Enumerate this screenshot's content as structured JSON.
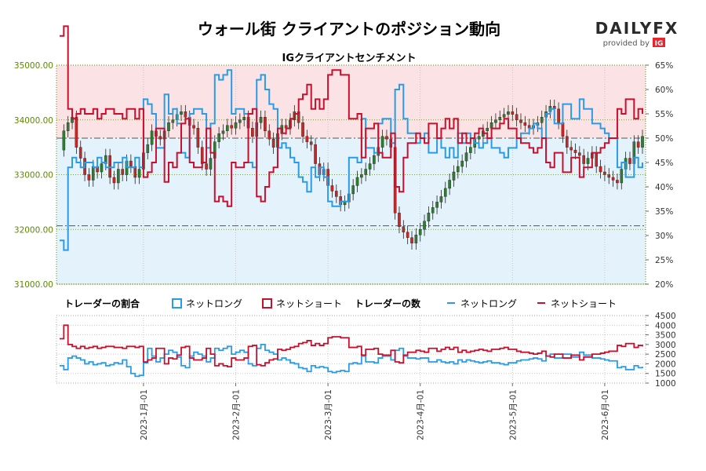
{
  "title": "ウォール街 クライアントのポジション動向",
  "subtitle": "IGクライアントセンチメント",
  "logo": {
    "main": "DAILYFX",
    "tagline": "provided by",
    "tag_mark": "IG"
  },
  "colors": {
    "long": "#2a9be6",
    "short": "#c8102e",
    "bg_top": "#fbe3e5",
    "bg_bottom": "#e4f2fb",
    "up_candle": "#2e7d32",
    "down_candle": "#c62828",
    "axis_left": "#5a8a00",
    "grid": "#b5b5b5"
  },
  "legend": {
    "ratio_title": "トレーダーの割合",
    "count_title": "トレーダーの数",
    "net_long": "ネットロング",
    "net_short": "ネットショート"
  },
  "chart_data": [
    {
      "type": "candlestick+line",
      "title": "IGクライアントセンチメント",
      "y_left_ticks": [
        "35000.00",
        "34000.00",
        "33000.00",
        "32000.00",
        "31000.00"
      ],
      "ylim_left": [
        31000,
        35000
      ],
      "y_right_ticks": [
        "65%",
        "60%",
        "55%",
        "50%",
        "45%",
        "40%",
        "35%",
        "30%",
        "25%",
        "20%"
      ],
      "ylim_right": [
        20,
        65
      ],
      "reference_lines": [
        50,
        32
      ],
      "x_tick_labels": [
        "2023-1月-01",
        "2023-2月-01",
        "2023-3月-01",
        "2023-4月-01",
        "2023-5月-01",
        "2023-6月-01"
      ],
      "price_close": [
        33450,
        33800,
        33950,
        34050,
        33500,
        33300,
        33000,
        32900,
        33150,
        33050,
        33200,
        33350,
        32950,
        32850,
        33100,
        33000,
        33250,
        33150,
        32950,
        33100,
        33400,
        33550,
        33800,
        33700,
        33650,
        33800,
        33950,
        34000,
        34100,
        34150,
        34050,
        33900,
        33850,
        33500,
        33200,
        33100,
        33300,
        33600,
        33750,
        33800,
        33900,
        33850,
        33950,
        34000,
        34050,
        33850,
        33700,
        33950,
        34050,
        33800,
        33650,
        33500,
        33750,
        33900,
        33850,
        34000,
        34150,
        33950,
        33700,
        33600,
        33550,
        33200,
        33000,
        33100,
        32800,
        32700,
        32600,
        32450,
        32500,
        32650,
        32800,
        32950,
        33000,
        33100,
        33200,
        33350,
        33500,
        33700,
        33650,
        33500,
        32300,
        32050,
        31950,
        31850,
        31750,
        31900,
        32000,
        32150,
        32300,
        32400,
        32500,
        32600,
        32750,
        32900,
        33050,
        33150,
        33250,
        33400,
        33500,
        33650,
        33700,
        33800,
        33850,
        33950,
        34000,
        34050,
        34100,
        34150,
        34100,
        34000,
        33950,
        33900,
        33850,
        33900,
        33950,
        34050,
        34150,
        34250,
        34200,
        33950,
        33700,
        33500,
        33450,
        33400,
        33350,
        33200,
        33300,
        33400,
        33150,
        33050,
        33000,
        32950,
        32900,
        32850,
        33100,
        33300,
        33200,
        33600,
        33500,
        33700
      ],
      "long_pct": [
        29,
        27,
        44,
        46,
        45,
        44,
        45,
        45,
        44,
        46,
        45,
        44,
        44,
        45,
        45,
        46,
        44,
        44,
        46,
        44,
        58,
        57,
        55,
        48,
        48,
        59,
        55,
        56,
        53,
        47,
        46,
        55,
        56,
        56,
        55,
        48,
        53,
        63,
        62,
        63,
        64,
        55,
        56,
        56,
        55,
        45,
        44,
        62,
        63,
        60,
        57,
        56,
        48,
        49,
        48,
        46,
        45,
        42,
        41,
        39,
        44,
        42,
        44,
        42,
        37,
        36,
        36,
        37,
        37,
        46,
        46,
        45,
        54,
        48,
        48,
        47,
        53,
        54,
        54,
        49,
        60,
        61,
        54,
        51,
        51,
        49,
        50,
        51,
        47,
        47,
        50,
        48,
        46,
        48,
        46,
        51,
        49,
        51,
        50,
        49,
        48,
        49,
        50,
        48,
        48,
        47,
        46,
        48,
        48,
        50,
        51,
        51,
        52,
        53,
        52,
        50,
        55,
        56,
        53,
        53,
        57,
        57,
        54,
        54,
        58,
        56,
        56,
        53,
        53,
        52,
        51,
        50,
        50,
        44,
        45,
        42,
        42,
        46,
        44,
        45
      ],
      "short_pct": [
        71,
        73,
        56,
        54,
        55,
        56,
        55,
        55,
        56,
        54,
        55,
        56,
        56,
        55,
        55,
        54,
        56,
        56,
        54,
        56,
        42,
        43,
        45,
        52,
        52,
        41,
        45,
        44,
        47,
        53,
        54,
        45,
        44,
        44,
        45,
        52,
        47,
        37,
        38,
        37,
        36,
        45,
        44,
        44,
        45,
        55,
        56,
        38,
        37,
        40,
        43,
        44,
        52,
        51,
        52,
        54,
        55,
        58,
        59,
        61,
        56,
        58,
        56,
        58,
        63,
        64,
        64,
        63,
        63,
        54,
        54,
        55,
        46,
        52,
        52,
        53,
        47,
        46,
        46,
        51,
        40,
        39,
        46,
        49,
        49,
        51,
        50,
        49,
        53,
        53,
        50,
        52,
        54,
        52,
        54,
        49,
        51,
        49,
        50,
        51,
        52,
        51,
        50,
        52,
        52,
        53,
        54,
        52,
        52,
        50,
        49,
        49,
        48,
        47,
        48,
        50,
        45,
        44,
        47,
        47,
        43,
        43,
        46,
        46,
        42,
        44,
        44,
        47,
        47,
        48,
        49,
        50,
        50,
        56,
        55,
        58,
        58,
        54,
        56,
        55
      ]
    },
    {
      "type": "line",
      "title": "トレーダーの数",
      "y_right_ticks": [
        "4500",
        "4000",
        "3500",
        "3000",
        "2500",
        "2000",
        "1500",
        "1000"
      ],
      "ylim_right": [
        1000,
        4500
      ],
      "series": [
        {
          "name": "ネットロング",
          "values": [
            1900,
            1700,
            2300,
            2400,
            2300,
            2200,
            2000,
            2100,
            1950,
            2000,
            2050,
            1900,
            1950,
            2050,
            2000,
            2200,
            1850,
            1500,
            1350,
            1400,
            2050,
            2800,
            2400,
            2100,
            2300,
            2500,
            2700,
            2600,
            2350,
            1900,
            1800,
            2400,
            2600,
            2500,
            2400,
            2100,
            2300,
            2800,
            2700,
            2800,
            2900,
            2500,
            2600,
            2700,
            2600,
            2000,
            1900,
            2800,
            3000,
            2700,
            2600,
            2500,
            2200,
            2300,
            2200,
            2050,
            2000,
            1800,
            1750,
            1600,
            1900,
            1800,
            1850,
            1800,
            1600,
            1550,
            1600,
            1650,
            1600,
            2000,
            2050,
            2000,
            2400,
            2100,
            2100,
            2050,
            2300,
            2400,
            2400,
            2200,
            2700,
            2800,
            2400,
            2300,
            2300,
            2250,
            2300,
            2300,
            2100,
            2100,
            2200,
            2100,
            2050,
            2100,
            2000,
            2200,
            2100,
            2200,
            2150,
            2100,
            2050,
            2100,
            2150,
            2050,
            2050,
            2000,
            1950,
            2050,
            2050,
            2150,
            2200,
            2200,
            2250,
            2300,
            2250,
            2150,
            2400,
            2500,
            2300,
            2300,
            2500,
            2500,
            2350,
            2350,
            2600,
            2450,
            2450,
            2300,
            2300,
            2250,
            2200,
            2150,
            2150,
            1800,
            1850,
            1700,
            1700,
            1900,
            1800,
            1850
          ]
        },
        {
          "name": "ネットショート",
          "values": [
            3300,
            4000,
            3000,
            2900,
            2800,
            2900,
            2800,
            2850,
            2900,
            2800,
            2850,
            2900,
            2900,
            2850,
            2850,
            2800,
            2900,
            2900,
            2850,
            2900,
            2100,
            2200,
            2300,
            2800,
            2800,
            2000,
            2300,
            2250,
            2450,
            2850,
            2900,
            2300,
            2200,
            2200,
            2300,
            2800,
            2500,
            1900,
            2000,
            1900,
            1850,
            2300,
            2200,
            2200,
            2300,
            2900,
            2950,
            1950,
            1900,
            2050,
            2200,
            2250,
            2750,
            2700,
            2750,
            2850,
            2900,
            3050,
            3100,
            3200,
            2950,
            3050,
            2950,
            3050,
            3350,
            3400,
            3400,
            3350,
            3350,
            2850,
            2850,
            2900,
            2450,
            2750,
            2750,
            2800,
            2500,
            2450,
            2450,
            2700,
            2100,
            2050,
            2450,
            2600,
            2600,
            2700,
            2650,
            2600,
            2800,
            2800,
            2650,
            2750,
            2850,
            2750,
            2850,
            2600,
            2700,
            2600,
            2650,
            2700,
            2750,
            2700,
            2650,
            2750,
            2750,
            2800,
            2850,
            2750,
            2750,
            2650,
            2600,
            2600,
            2550,
            2500,
            2550,
            2650,
            2400,
            2350,
            2500,
            2500,
            2300,
            2300,
            2450,
            2450,
            2200,
            2350,
            2350,
            2500,
            2500,
            2550,
            2600,
            2650,
            2650,
            2950,
            2900,
            3050,
            3050,
            2850,
            2950,
            2900
          ]
        }
      ]
    }
  ]
}
